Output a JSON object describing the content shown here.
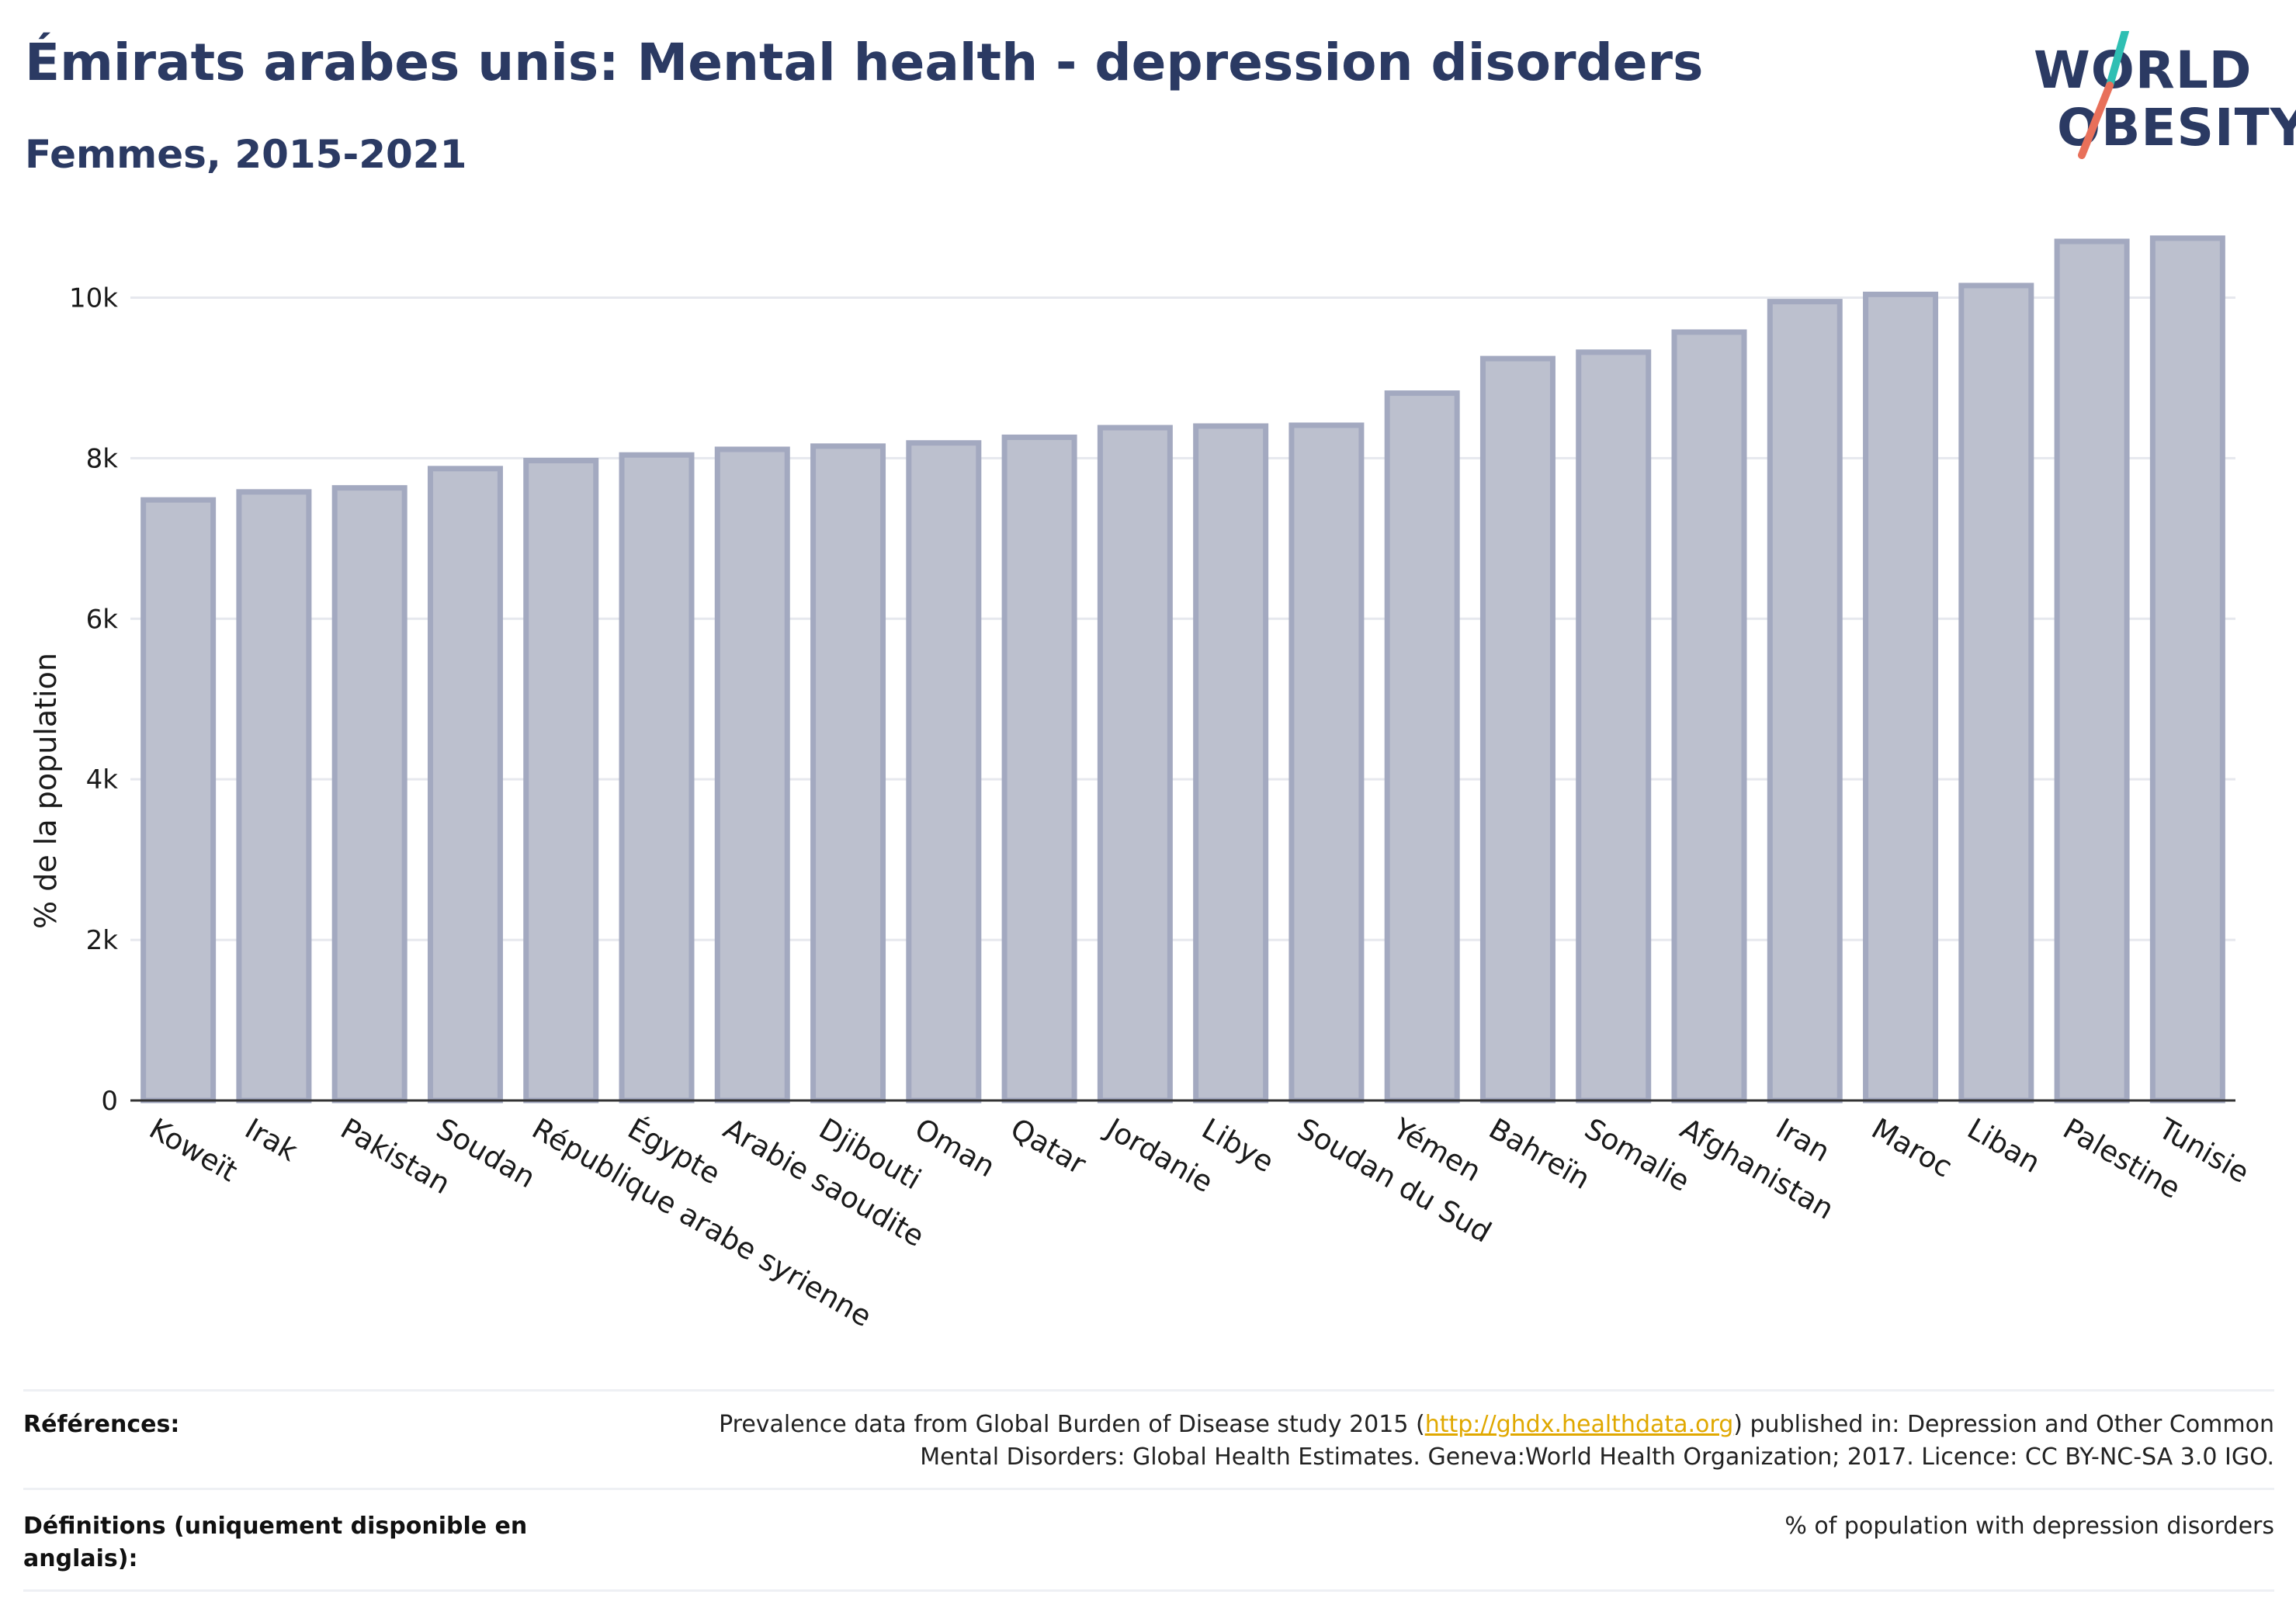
{
  "header": {
    "title": "Émirats arabes unis: Mental health - depression disorders",
    "subtitle": "Femmes, 2015-2021"
  },
  "logo": {
    "line1": "WORLD",
    "line2": "OBESITY",
    "slash_colors": [
      "#2fbfb3",
      "#e8705a"
    ]
  },
  "colors": {
    "bar_fill": "#bcc0ce",
    "bar_stroke": "#a3a9c0",
    "text": "#2b3a63",
    "grid": "#e6e8ee",
    "link": "#e0a800"
  },
  "chart_data": {
    "type": "bar",
    "title": "",
    "xlabel": "",
    "ylabel": "% de la population",
    "ylim": [
      0,
      11000
    ],
    "yticks": [
      0,
      2000,
      4000,
      6000,
      8000,
      10000
    ],
    "ytick_labels": [
      "0",
      "2k",
      "4k",
      "6k",
      "8k",
      "10k"
    ],
    "grid": true,
    "categories": [
      "Koweït",
      "Irak",
      "Pakistan",
      "Soudan",
      "République arabe syrienne",
      "Égypte",
      "Arabie saoudite",
      "Djibouti",
      "Oman",
      "Qatar",
      "Jordanie",
      "Libye",
      "Soudan du Sud",
      "Yémen",
      "Bahreïn",
      "Somalie",
      "Afghanistan",
      "Iran",
      "Maroc",
      "Liban",
      "Palestine",
      "Tunisie"
    ],
    "values": [
      7480,
      7580,
      7630,
      7870,
      7970,
      8040,
      8110,
      8150,
      8190,
      8260,
      8380,
      8400,
      8410,
      8810,
      9240,
      9320,
      9570,
      9950,
      10040,
      10150,
      10700,
      10740
    ]
  },
  "references": {
    "ref_label": "Références:",
    "ref_text_before": "Prevalence data from Global Burden of Disease study 2015 (",
    "ref_link": "http://ghdx.healthdata.org",
    "ref_text_after": ") published in: Depression and Other Common",
    "ref_text_line2": "Mental Disorders: Global Health Estimates. Geneva:World Health Organization; 2017. Licence: CC BY-NC-SA 3.0 IGO.",
    "def_label": "Définitions (uniquement disponible en anglais):",
    "def_text": "% of population with depression disorders"
  }
}
